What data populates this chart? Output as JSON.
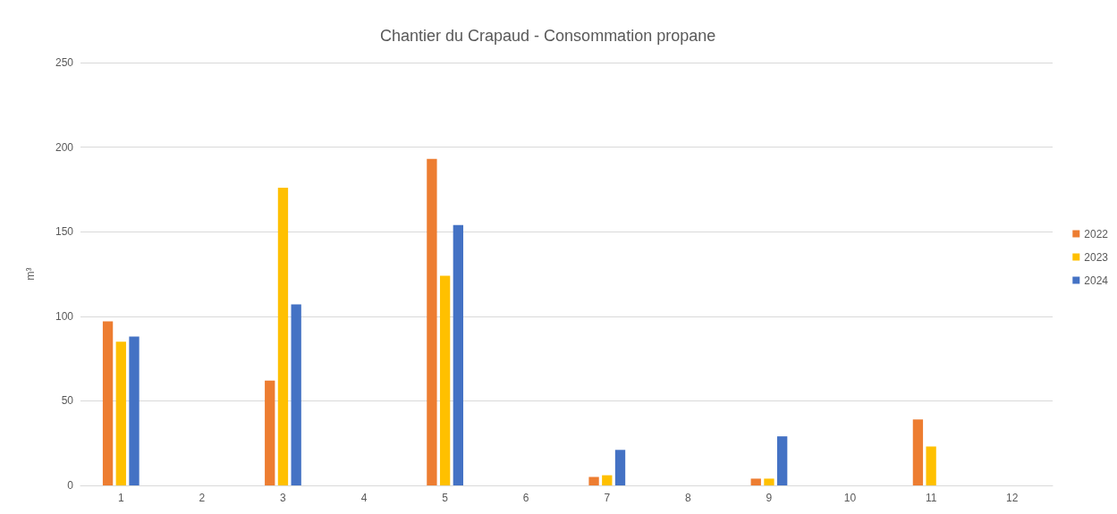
{
  "chart_data": {
    "type": "bar",
    "title": "Chantier du Crapaud - Consommation propane",
    "ylabel": "m³",
    "categories": [
      "1",
      "2",
      "3",
      "4",
      "5",
      "6",
      "7",
      "8",
      "9",
      "10",
      "11",
      "12"
    ],
    "series": [
      {
        "name": "2022",
        "color": "#ed7d31",
        "values": [
          97,
          null,
          62,
          null,
          193,
          null,
          5,
          null,
          4,
          null,
          39,
          null
        ]
      },
      {
        "name": "2023",
        "color": "#ffc000",
        "values": [
          85,
          null,
          176,
          null,
          124,
          null,
          6,
          null,
          4,
          null,
          23,
          null
        ]
      },
      {
        "name": "2024",
        "color": "#4472c4",
        "values": [
          88,
          null,
          107,
          null,
          154,
          null,
          21,
          null,
          29,
          null,
          null,
          null
        ]
      }
    ],
    "ylim": [
      0,
      250
    ],
    "yticks": [
      0,
      50,
      100,
      150,
      200,
      250
    ],
    "grid": "y",
    "legend": "right"
  }
}
